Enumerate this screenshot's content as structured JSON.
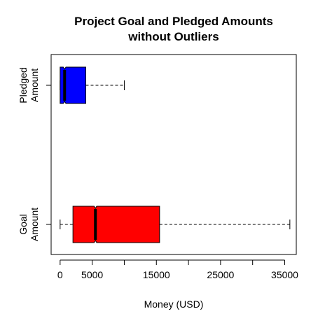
{
  "chart_data": {
    "type": "boxplot",
    "orientation": "horizontal",
    "title_lines": [
      "Project Goal and Pledged Amounts",
      "without Outliers"
    ],
    "xlabel": "Money (USD)",
    "xlim": [
      -1400,
      36800
    ],
    "x_ticks": [
      0,
      5000,
      15000,
      25000,
      35000
    ],
    "x_tick_marks": [
      0,
      5000,
      10000,
      15000,
      20000,
      25000,
      30000,
      35000
    ],
    "groups": [
      {
        "label_lines": [
          "Goal",
          "Amount"
        ],
        "color": "#ff0000",
        "whisker_low": 0,
        "q1": 2000,
        "median": 5500,
        "q3": 15500,
        "whisker_high": 35800,
        "notch_low": 5300,
        "notch_high": 5700
      },
      {
        "label_lines": [
          "Pledged",
          "Amount"
        ],
        "color": "#0000ff",
        "whisker_low": 0,
        "q1": 0,
        "median": 700,
        "q3": 4000,
        "whisker_high": 10000,
        "notch_low": 500,
        "notch_high": 900
      }
    ]
  }
}
